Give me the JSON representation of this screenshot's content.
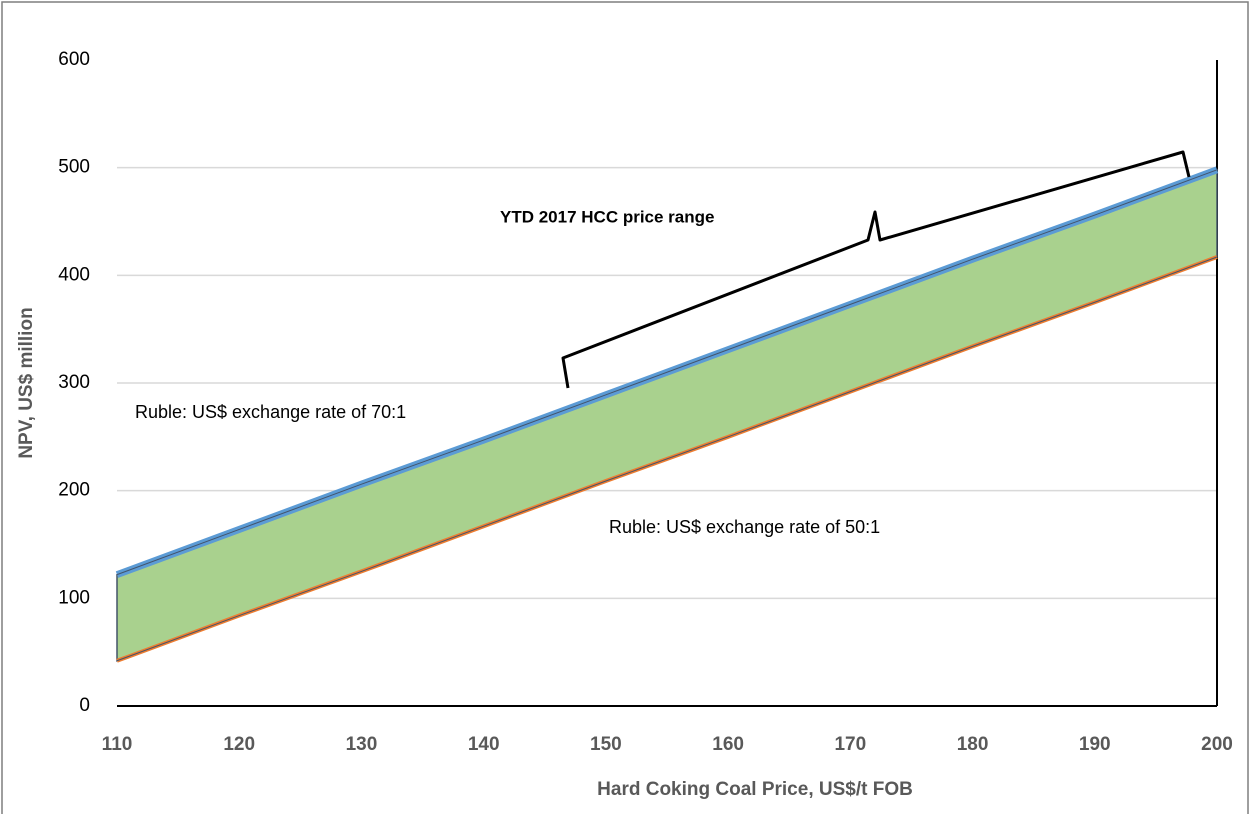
{
  "chart_data": {
    "type": "line",
    "x_label": "Hard Coking Coal Price, US$/t FOB",
    "y_label": "NPV, US$ million",
    "x": [
      110,
      120,
      130,
      140,
      150,
      160,
      170,
      180,
      190,
      200
    ],
    "series": [
      {
        "color": "#5b9bd5",
        "values": [
          122,
          164,
          206,
          247,
          289,
          331,
          373,
          415,
          456,
          498
        ]
      },
      {
        "color": "#ed7d31",
        "values": [
          42,
          84,
          125,
          167,
          209,
          250,
          292,
          334,
          375,
          417
        ]
      }
    ],
    "fill_color": "#a9d18e",
    "xlim": [
      110,
      200
    ],
    "xticks": [
      110,
      120,
      130,
      140,
      150,
      160,
      170,
      180,
      190,
      200
    ],
    "ylim": [
      0,
      600
    ],
    "yticks": [
      0,
      100,
      200,
      300,
      400,
      500,
      600
    ],
    "grid": true,
    "annotations": [
      "Ruble: US$ exchange rate of 70:1",
      "Ruble: US$ exchange rate of 50:1",
      "YTD 2017 HCC price range"
    ]
  }
}
